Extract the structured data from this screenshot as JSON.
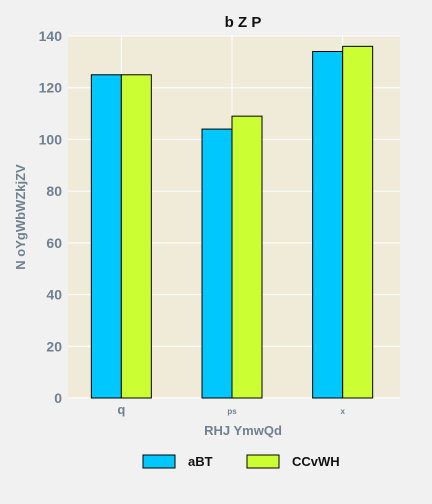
{
  "chart_data": {
    "type": "bar",
    "title": "b Z P",
    "xlabel": "RHJ YmwQd",
    "ylabel": "N oYgWbWZkjZV",
    "categories": [
      "q",
      "ps",
      "x"
    ],
    "series": [
      {
        "name": "aBT",
        "values": [
          125,
          104,
          134
        ],
        "color": "#00c8ff"
      },
      {
        "name": "CCvWH",
        "values": [
          125,
          109,
          136
        ],
        "color": "#ccff33"
      }
    ],
    "ylim": [
      0,
      140
    ],
    "yticks": [
      0,
      20,
      40,
      60,
      80,
      100,
      120,
      140
    ],
    "grid": true,
    "plot_background": "#f0ead8",
    "legend_position": "bottom"
  }
}
